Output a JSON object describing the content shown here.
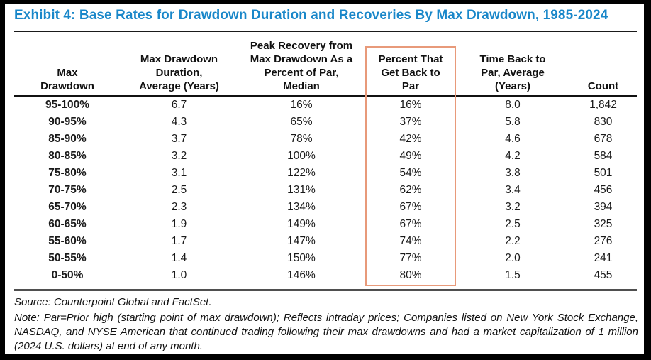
{
  "exhibit": {
    "title": "Exhibit 4: Base Rates for Drawdown Duration and Recoveries By Max Drawdown, 1985-2024"
  },
  "colors": {
    "title_blue": "#1987c9",
    "highlight_orange": "#e89a7a",
    "table_bottom_rule": "#4f4f4f"
  },
  "table": {
    "headers": [
      "Max\nDrawdown",
      "Max Drawdown\nDuration,\nAverage (Years)",
      "Peak Recovery from\nMax Drawdown As a\nPercent of Par,\nMedian",
      "Percent That\nGet Back to\nPar",
      "Time Back to\nPar, Average\n(Years)",
      "Count"
    ],
    "highlighted_column": "Percent That Get Back to Par",
    "rows": [
      [
        "95-100%",
        "6.7",
        "16%",
        "16%",
        "8.0",
        "1,842"
      ],
      [
        "90-95%",
        "4.3",
        "65%",
        "37%",
        "5.8",
        "830"
      ],
      [
        "85-90%",
        "3.7",
        "78%",
        "42%",
        "4.6",
        "678"
      ],
      [
        "80-85%",
        "3.2",
        "100%",
        "49%",
        "4.2",
        "584"
      ],
      [
        "75-80%",
        "3.1",
        "122%",
        "54%",
        "3.8",
        "501"
      ],
      [
        "70-75%",
        "2.5",
        "131%",
        "62%",
        "3.4",
        "456"
      ],
      [
        "65-70%",
        "2.3",
        "134%",
        "67%",
        "3.2",
        "394"
      ],
      [
        "60-65%",
        "1.9",
        "149%",
        "67%",
        "2.5",
        "325"
      ],
      [
        "55-60%",
        "1.7",
        "147%",
        "74%",
        "2.2",
        "276"
      ],
      [
        "50-55%",
        "1.4",
        "150%",
        "77%",
        "2.0",
        "241"
      ],
      [
        "0-50%",
        "1.0",
        "146%",
        "80%",
        "1.5",
        "455"
      ]
    ]
  },
  "footer": {
    "source": "Source: Counterpoint Global and FactSet.",
    "note": "Note: Par=Prior high (starting point of max drawdown); Reflects intraday prices; Companies listed on New York Stock Exchange, NASDAQ, and NYSE American that continued trading following their max drawdowns and had a market capitalization of 1 million (2024 U.S. dollars) at end of any month."
  },
  "chart_data": {
    "type": "table",
    "title": "Exhibit 4: Base Rates for Drawdown Duration and Recoveries By Max Drawdown, 1985-2024",
    "categories": [
      "95-100%",
      "90-95%",
      "85-90%",
      "80-85%",
      "75-80%",
      "70-75%",
      "65-70%",
      "60-65%",
      "55-60%",
      "50-55%",
      "0-50%"
    ],
    "series": [
      {
        "name": "Max Drawdown Duration, Average (Years)",
        "values": [
          6.7,
          4.3,
          3.7,
          3.2,
          3.1,
          2.5,
          2.3,
          1.9,
          1.7,
          1.4,
          1.0
        ]
      },
      {
        "name": "Peak Recovery from Max Drawdown As a Percent of Par, Median",
        "values": [
          "16%",
          "65%",
          "78%",
          "100%",
          "122%",
          "131%",
          "134%",
          "149%",
          "147%",
          "150%",
          "146%"
        ]
      },
      {
        "name": "Percent That Get Back to Par",
        "values": [
          "16%",
          "37%",
          "42%",
          "49%",
          "54%",
          "62%",
          "67%",
          "67%",
          "74%",
          "77%",
          "80%"
        ]
      },
      {
        "name": "Time Back to Par, Average (Years)",
        "values": [
          8.0,
          5.8,
          4.6,
          4.2,
          3.8,
          3.4,
          3.2,
          2.5,
          2.2,
          2.0,
          1.5
        ]
      },
      {
        "name": "Count",
        "values": [
          1842,
          830,
          678,
          584,
          501,
          456,
          394,
          325,
          276,
          241,
          455
        ]
      }
    ]
  }
}
